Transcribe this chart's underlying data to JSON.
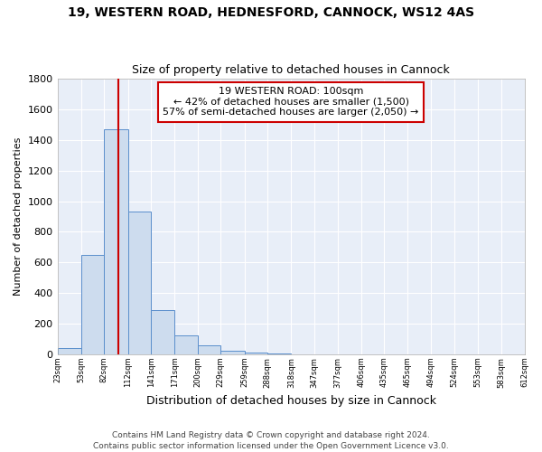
{
  "title1": "19, WESTERN ROAD, HEDNESFORD, CANNOCK, WS12 4AS",
  "title2": "Size of property relative to detached houses in Cannock",
  "xlabel": "Distribution of detached houses by size in Cannock",
  "ylabel": "Number of detached properties",
  "footer1": "Contains HM Land Registry data © Crown copyright and database right 2024.",
  "footer2": "Contains public sector information licensed under the Open Government Licence v3.0.",
  "annotation_line1": "19 WESTERN ROAD: 100sqm",
  "annotation_line2": "← 42% of detached houses are smaller (1,500)",
  "annotation_line3": "57% of semi-detached houses are larger (2,050) →",
  "bar_color": "#cddcee",
  "bar_edge_color": "#5b8fcc",
  "vline_color": "#cc0000",
  "vline_x": 100,
  "bin_edges": [
    23,
    53,
    82,
    112,
    141,
    171,
    200,
    229,
    259,
    288,
    318,
    347,
    377,
    406,
    435,
    465,
    494,
    524,
    553,
    583,
    612
  ],
  "bar_heights": [
    40,
    650,
    1470,
    935,
    290,
    125,
    60,
    25,
    10,
    5,
    2,
    2,
    1,
    0,
    0,
    0,
    0,
    0,
    0,
    0
  ],
  "ylim": [
    0,
    1800
  ],
  "yticks": [
    0,
    200,
    400,
    600,
    800,
    1000,
    1200,
    1400,
    1600,
    1800
  ],
  "background_color": "#e8eef8",
  "fig_background": "#ffffff",
  "grid_color": "#ffffff",
  "title1_fontsize": 10,
  "title2_fontsize": 9,
  "ylabel_fontsize": 8,
  "xlabel_fontsize": 9,
  "annotation_box_color": "#cc0000",
  "footer_fontsize": 6.5
}
